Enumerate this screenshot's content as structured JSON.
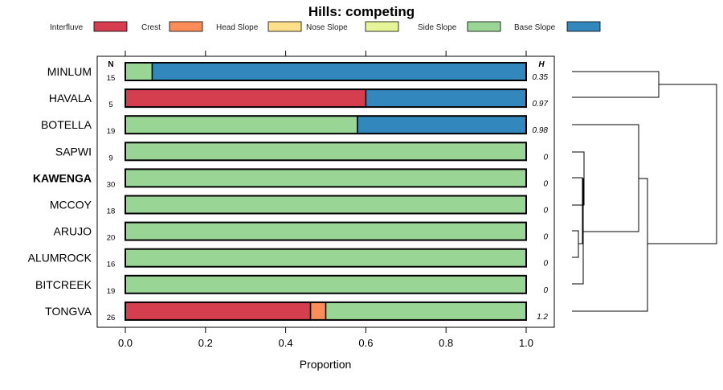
{
  "chart_data": {
    "type": "bar",
    "orientation": "horizontal",
    "stacked": true,
    "title": "Hills: competing",
    "xlabel": "Proportion",
    "ylabel": "",
    "xlim": [
      0,
      1
    ],
    "xticks": [
      "0.0",
      "0.2",
      "0.4",
      "0.6",
      "0.8",
      "1.0"
    ],
    "n_header": "N",
    "h_header": "H",
    "legend": [
      {
        "name": "Interfluve",
        "color": "#D53E4F"
      },
      {
        "name": "Crest",
        "color": "#FC8D59"
      },
      {
        "name": "Head Slope",
        "color": "#FEE08B"
      },
      {
        "name": "Nose Slope",
        "color": "#E6F598"
      },
      {
        "name": "Side Slope",
        "color": "#99D594"
      },
      {
        "name": "Base Slope",
        "color": "#3288BD"
      }
    ],
    "categories": [
      "MINLUM",
      "HAVALA",
      "BOTELLA",
      "SAPWI",
      "KAWENGA",
      "MCCOY",
      "ARUJO",
      "ALUMROCK",
      "BITCREEK",
      "TONGVA"
    ],
    "bold_category": "KAWENGA",
    "n": [
      "15",
      "5",
      "19",
      "9",
      "30",
      "18",
      "20",
      "16",
      "19",
      "26"
    ],
    "h": [
      "0.35",
      "0.97",
      "0.98",
      "0",
      "0",
      "0",
      "0",
      "0",
      "0",
      "1.2"
    ],
    "series": [
      {
        "name": "Interfluve",
        "values": [
          0,
          0.6,
          0,
          0,
          0,
          0,
          0,
          0,
          0,
          0.462
        ]
      },
      {
        "name": "Crest",
        "values": [
          0,
          0,
          0,
          0,
          0,
          0,
          0,
          0,
          0,
          0.038
        ]
      },
      {
        "name": "Head Slope",
        "values": [
          0,
          0,
          0,
          0,
          0,
          0,
          0,
          0,
          0,
          0
        ]
      },
      {
        "name": "Nose Slope",
        "values": [
          0,
          0,
          0,
          0,
          0,
          0,
          0,
          0,
          0,
          0
        ]
      },
      {
        "name": "Side Slope",
        "values": [
          0.067,
          0,
          0.579,
          1,
          1,
          1,
          1,
          1,
          1,
          0.5
        ]
      },
      {
        "name": "Base Slope",
        "values": [
          0.933,
          0.4,
          0.421,
          0,
          0,
          0,
          0,
          0,
          0,
          0
        ]
      }
    ]
  }
}
